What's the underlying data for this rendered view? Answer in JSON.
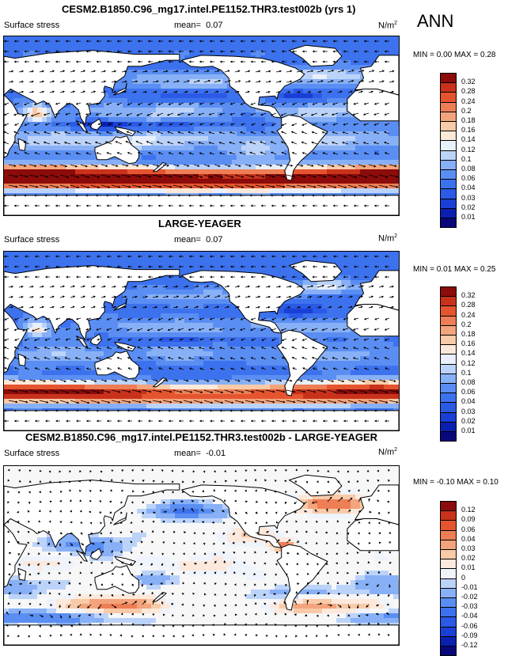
{
  "ann_label": "ANN",
  "panels": [
    {
      "title": "CESM2.B1850.C96_mg17.intel.PE1152.THR3.test002b (yrs 1)",
      "variable": "Surface stress",
      "mean_label": "mean=",
      "mean_value": "0.07",
      "units": "N/m",
      "units_sup": "2",
      "minmax": "MIN =   0.00  MAX =   0.28",
      "colorbar_ticks": [
        "0.32",
        "0.28",
        "0.24",
        "0.2",
        "0.18",
        "0.16",
        "0.14",
        "0.12",
        "0.1",
        "0.08",
        "0.06",
        "0.04",
        "0.03",
        "0.02",
        "0.01"
      ]
    },
    {
      "title": "LARGE-YEAGER",
      "variable": "Surface stress",
      "mean_label": "mean=",
      "mean_value": "0.07",
      "units": "N/m",
      "units_sup": "2",
      "minmax": "MIN =   0.01  MAX =   0.25",
      "colorbar_ticks": [
        "0.32",
        "0.28",
        "0.24",
        "0.2",
        "0.18",
        "0.16",
        "0.14",
        "0.12",
        "0.1",
        "0.08",
        "0.06",
        "0.04",
        "0.03",
        "0.02",
        "0.01"
      ]
    },
    {
      "title": "CESM2.B1850.C96_mg17.intel.PE1152.THR3.test002b - LARGE-YEAGER",
      "variable": "Surface stress",
      "mean_label": "mean=",
      "mean_value": "-0.01",
      "units": "N/m",
      "units_sup": "2",
      "minmax": "MIN = -0.10  MAX =   0.10",
      "colorbar_ticks": [
        "0.12",
        "0.09",
        "0.06",
        "0.04",
        "0.03",
        "0.02",
        "0.01",
        "0",
        "-0.01",
        "-0.02",
        "-0.03",
        "-0.04",
        "-0.06",
        "-0.09",
        "-0.12"
      ]
    }
  ],
  "colors": {
    "abs_scale": [
      "#08087a",
      "#0b1fb0",
      "#1a3fd6",
      "#2a5ae6",
      "#3d72ee",
      "#5a8ef3",
      "#88b0f6",
      "#bcd3f9",
      "#e9f0fc",
      "#fbe8d8",
      "#f8caa8",
      "#f4a47c",
      "#ee7e55",
      "#e4552f",
      "#c8321b",
      "#8c0b0b"
    ],
    "diff_scale": [
      "#08087a",
      "#0b1fb0",
      "#1a3fd6",
      "#2a5ae6",
      "#3d72ee",
      "#5a8ef3",
      "#88b0f6",
      "#bcd3f9",
      "#eef3fc",
      "#fde9dc",
      "#f8caa8",
      "#f4a47c",
      "#ee7e55",
      "#e4552f",
      "#c8321b",
      "#8c0b0b"
    ]
  },
  "chart_data": [
    {
      "type": "heatmap",
      "subtype": "global vector map (wind stress)",
      "title": "CESM2.B1850.C96_mg17.intel.PE1152.THR3.test002b (yrs 1)",
      "variable": "Surface stress",
      "units": "N/m2",
      "mean": 0.07,
      "min": 0.0,
      "max": 0.28,
      "contour_levels": [
        0.01,
        0.02,
        0.03,
        0.04,
        0.06,
        0.08,
        0.1,
        0.12,
        0.14,
        0.16,
        0.18,
        0.2,
        0.24,
        0.28,
        0.32
      ],
      "period": "ANN"
    },
    {
      "type": "heatmap",
      "subtype": "global vector map (wind stress)",
      "title": "LARGE-YEAGER",
      "variable": "Surface stress",
      "units": "N/m2",
      "mean": 0.07,
      "min": 0.01,
      "max": 0.25,
      "contour_levels": [
        0.01,
        0.02,
        0.03,
        0.04,
        0.06,
        0.08,
        0.1,
        0.12,
        0.14,
        0.16,
        0.18,
        0.2,
        0.24,
        0.28,
        0.32
      ],
      "period": "ANN"
    },
    {
      "type": "heatmap",
      "subtype": "global vector map (difference)",
      "title": "CESM2.B1850.C96_mg17.intel.PE1152.THR3.test002b - LARGE-YEAGER",
      "variable": "Surface stress",
      "units": "N/m2",
      "mean": -0.01,
      "min": -0.1,
      "max": 0.1,
      "contour_levels": [
        -0.12,
        -0.09,
        -0.06,
        -0.04,
        -0.03,
        -0.02,
        -0.01,
        0,
        0.01,
        0.02,
        0.03,
        0.04,
        0.06,
        0.09,
        0.12
      ],
      "period": "ANN"
    }
  ]
}
